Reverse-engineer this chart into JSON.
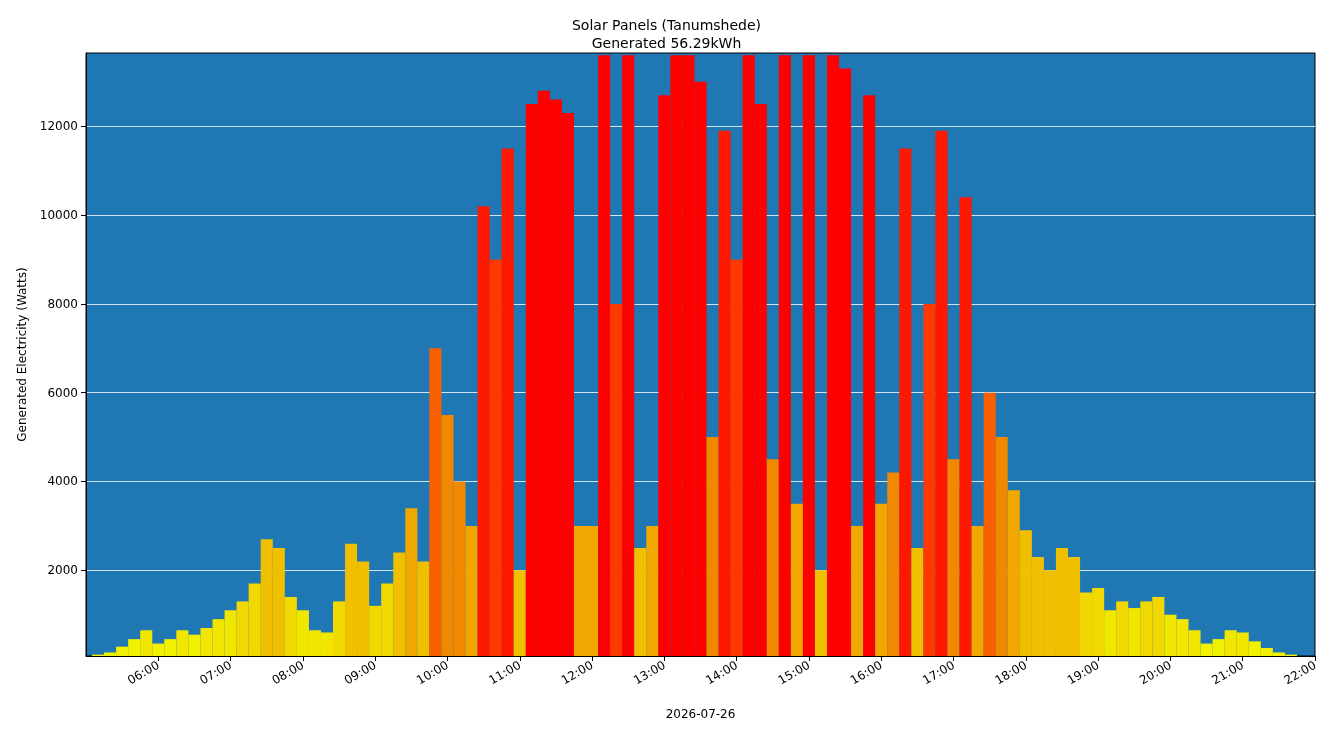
{
  "chart_data": {
    "type": "bar",
    "title": "Solar Panels (Tanumshede)",
    "subtitle": "Generated 56.29kWh",
    "xlabel": "2026-07-26",
    "ylabel": "Generated Electricity (Watts)",
    "x": [
      "2026-07-26T05:10",
      "2026-07-26T05:20",
      "2026-07-26T05:30",
      "2026-07-26T05:40",
      "2026-07-26T05:50",
      "2026-07-26T06:00",
      "2026-07-26T06:10",
      "2026-07-26T06:20",
      "2026-07-26T06:30",
      "2026-07-26T06:40",
      "2026-07-26T06:50",
      "2026-07-26T07:00",
      "2026-07-26T07:10",
      "2026-07-26T07:20",
      "2026-07-26T07:30",
      "2026-07-26T07:40",
      "2026-07-26T07:50",
      "2026-07-26T08:00",
      "2026-07-26T08:10",
      "2026-07-26T08:20",
      "2026-07-26T08:30",
      "2026-07-26T08:40",
      "2026-07-26T08:50",
      "2026-07-26T09:00",
      "2026-07-26T09:10",
      "2026-07-26T09:20",
      "2026-07-26T09:30",
      "2026-07-26T09:40",
      "2026-07-26T09:50",
      "2026-07-26T10:00",
      "2026-07-26T10:10",
      "2026-07-26T10:20",
      "2026-07-26T10:30",
      "2026-07-26T10:40",
      "2026-07-26T10:50",
      "2026-07-26T11:00",
      "2026-07-26T11:10",
      "2026-07-26T11:20",
      "2026-07-26T11:30",
      "2026-07-26T11:40",
      "2026-07-26T11:50",
      "2026-07-26T12:00",
      "2026-07-26T12:10",
      "2026-07-26T12:20",
      "2026-07-26T12:30",
      "2026-07-26T12:40",
      "2026-07-26T12:50",
      "2026-07-26T13:00",
      "2026-07-26T13:10",
      "2026-07-26T13:20",
      "2026-07-26T13:30",
      "2026-07-26T13:40",
      "2026-07-26T13:50",
      "2026-07-26T14:00",
      "2026-07-26T14:10",
      "2026-07-26T14:20",
      "2026-07-26T14:30",
      "2026-07-26T14:40",
      "2026-07-26T14:50",
      "2026-07-26T15:00",
      "2026-07-26T15:10",
      "2026-07-26T15:20",
      "2026-07-26T15:30",
      "2026-07-26T15:40",
      "2026-07-26T15:50",
      "2026-07-26T16:00",
      "2026-07-26T16:10",
      "2026-07-26T16:20",
      "2026-07-26T16:30",
      "2026-07-26T16:40",
      "2026-07-26T16:50",
      "2026-07-26T17:00",
      "2026-07-26T17:10",
      "2026-07-26T17:20",
      "2026-07-26T17:30",
      "2026-07-26T17:40",
      "2026-07-26T17:50",
      "2026-07-26T18:00",
      "2026-07-26T18:10",
      "2026-07-26T18:20",
      "2026-07-26T18:30",
      "2026-07-26T18:40",
      "2026-07-26T18:50",
      "2026-07-26T19:00",
      "2026-07-26T19:10",
      "2026-07-26T19:20",
      "2026-07-26T19:30",
      "2026-07-26T19:40",
      "2026-07-26T19:50",
      "2026-07-26T20:00",
      "2026-07-26T20:10",
      "2026-07-26T20:20",
      "2026-07-26T20:30",
      "2026-07-26T20:40",
      "2026-07-26T20:50",
      "2026-07-26T21:00",
      "2026-07-26T21:10",
      "2026-07-26T21:20",
      "2026-07-26T21:30",
      "2026-07-26T21:40"
    ],
    "values": [
      100,
      150,
      280,
      450,
      650,
      350,
      450,
      650,
      550,
      700,
      900,
      1100,
      1300,
      1700,
      2700,
      2500,
      1400,
      1100,
      650,
      600,
      1300,
      2600,
      2200,
      1200,
      1700,
      2400,
      3400,
      2200,
      7000,
      5500,
      4000,
      3000,
      10200,
      9000,
      11500,
      2000,
      12500,
      12800,
      12600,
      12300,
      3000,
      3000,
      13600,
      8000,
      13600,
      2500,
      3000,
      12700,
      13600,
      13600,
      13000,
      5000,
      11900,
      9000,
      13600,
      12500,
      4500,
      13600,
      3500,
      13600,
      2000,
      13600,
      13300,
      3000,
      12700,
      3500,
      4200,
      11500,
      2500,
      8000,
      11900,
      4500,
      10400,
      3000,
      6000,
      5000,
      3800,
      2900,
      2300,
      2000,
      2500,
      2300,
      1500,
      1600,
      1100,
      1300,
      1150,
      1300,
      1400,
      1000,
      900,
      650,
      350,
      450,
      650,
      600,
      400,
      250,
      150,
      100
    ],
    "colors": [
      "#f2f200",
      "#f2f200",
      "#f2f200",
      "#f2f200",
      "#f0e600",
      "#f2f200",
      "#f2f200",
      "#f0e600",
      "#f2f200",
      "#f0e600",
      "#f0e600",
      "#f0e600",
      "#f0d800",
      "#f0d800",
      "#f0c000",
      "#f0c000",
      "#f0d800",
      "#f0e600",
      "#f0e600",
      "#f0e600",
      "#f0d800",
      "#f0c000",
      "#f0c000",
      "#f0d800",
      "#f0d800",
      "#f0c000",
      "#f0a800",
      "#f0c000",
      "#f86000",
      "#f08800",
      "#f08800",
      "#f0a800",
      "#ff1800",
      "#ff3800",
      "#ff1800",
      "#f0c000",
      "#ff0000",
      "#ff0000",
      "#ff0000",
      "#ff0000",
      "#f0a800",
      "#f0a800",
      "#ff0000",
      "#ff3800",
      "#ff0000",
      "#f0c000",
      "#f0a800",
      "#ff0000",
      "#ff0000",
      "#ff0000",
      "#ff0000",
      "#f08800",
      "#ff1800",
      "#ff3800",
      "#ff0000",
      "#ff0000",
      "#f08800",
      "#ff0000",
      "#f0a800",
      "#ff0000",
      "#f0c000",
      "#ff0000",
      "#ff0000",
      "#f0a800",
      "#ff0000",
      "#f0a800",
      "#f08800",
      "#ff1800",
      "#f0c000",
      "#ff3800",
      "#ff1800",
      "#f08800",
      "#ff1800",
      "#f0a800",
      "#f86000",
      "#f08800",
      "#f0a800",
      "#f0c000",
      "#f0c000",
      "#f0c000",
      "#f0c000",
      "#f0c000",
      "#f0d800",
      "#f0d800",
      "#f0e600",
      "#f0d800",
      "#f0e600",
      "#f0d800",
      "#f0d800",
      "#f0e600",
      "#f0e600",
      "#f0e600",
      "#f2f200",
      "#f2f200",
      "#f0e600",
      "#f0e600",
      "#f2f200",
      "#f2f200",
      "#f2f200",
      "#f2f200"
    ],
    "xlim": [
      "2026-07-26T05:00",
      "2026-07-26T22:00"
    ],
    "xticks": [
      {
        "value": "2026-07-26T06:00",
        "label": "06:00"
      },
      {
        "value": "2026-07-26T07:00",
        "label": "07:00"
      },
      {
        "value": "2026-07-26T08:00",
        "label": "08:00"
      },
      {
        "value": "2026-07-26T09:00",
        "label": "09:00"
      },
      {
        "value": "2026-07-26T10:00",
        "label": "10:00"
      },
      {
        "value": "2026-07-26T11:00",
        "label": "11:00"
      },
      {
        "value": "2026-07-26T12:00",
        "label": "12:00"
      },
      {
        "value": "2026-07-26T13:00",
        "label": "13:00"
      },
      {
        "value": "2026-07-26T14:00",
        "label": "14:00"
      },
      {
        "value": "2026-07-26T15:00",
        "label": "15:00"
      },
      {
        "value": "2026-07-26T16:00",
        "label": "16:00"
      },
      {
        "value": "2026-07-26T17:00",
        "label": "17:00"
      },
      {
        "value": "2026-07-26T18:00",
        "label": "18:00"
      },
      {
        "value": "2026-07-26T19:00",
        "label": "19:00"
      },
      {
        "value": "2026-07-26T20:00",
        "label": "20:00"
      },
      {
        "value": "2026-07-26T21:00",
        "label": "21:00"
      },
      {
        "value": "2026-07-26T22:00",
        "label": "22:00"
      }
    ],
    "ylim": [
      70,
      13650
    ],
    "yticks": [
      2000,
      4000,
      6000,
      8000,
      10000,
      12000
    ],
    "grid": "y",
    "legend": false
  }
}
